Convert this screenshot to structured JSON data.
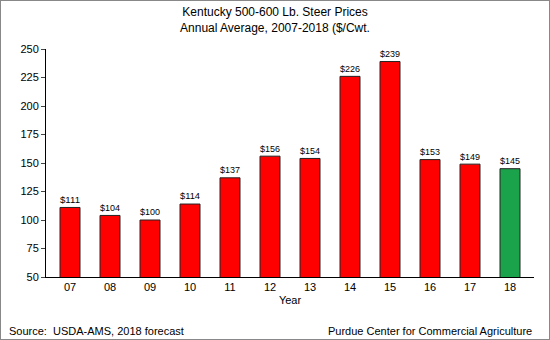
{
  "chart_data": {
    "type": "bar",
    "title": "Kentucky 500-600 Lb. Steer Prices",
    "subtitle": "Annual Average, 2007-2018 ($/Cwt.",
    "xlabel": "Year",
    "categories": [
      "07",
      "08",
      "09",
      "10",
      "11",
      "12",
      "13",
      "14",
      "15",
      "16",
      "17",
      "18"
    ],
    "values": [
      111,
      104,
      100,
      114,
      137,
      156,
      154,
      226,
      239,
      153,
      149,
      145
    ],
    "value_labels": [
      "$111",
      "$104",
      "$100",
      "$114",
      "$137",
      "$156",
      "$154",
      "$226",
      "$239",
      "$153",
      "$149",
      "$145"
    ],
    "colors": [
      "#ff0000",
      "#ff0000",
      "#ff0000",
      "#ff0000",
      "#ff0000",
      "#ff0000",
      "#ff0000",
      "#ff0000",
      "#ff0000",
      "#ff0000",
      "#ff0000",
      "#1aa34a"
    ],
    "ylim": [
      50,
      250
    ],
    "yticks": [
      50,
      75,
      100,
      125,
      150,
      175,
      200,
      225,
      250
    ],
    "grid": false,
    "data_labels": true,
    "annotations": [
      "Source:  USDA-AMS, 2018 forecast",
      "Purdue Center for Commercial Agriculture"
    ]
  }
}
